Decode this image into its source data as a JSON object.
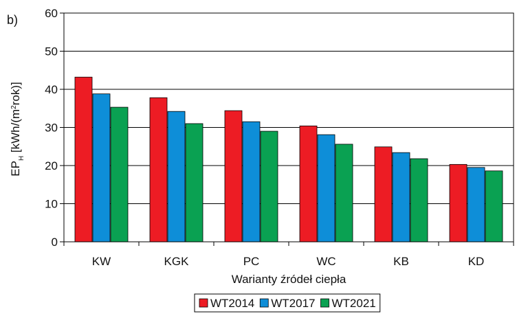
{
  "panel_label": "b)",
  "legend_title": "",
  "chart_data": {
    "type": "bar",
    "title": "",
    "xlabel": "Warianty źródeł ciepła",
    "ylabel_parts": {
      "base": "EP",
      "sub": "H",
      "unit_open": " [kWh/(m",
      "sup": "2",
      "unit_close": "rok)]"
    },
    "ylim": [
      0,
      60
    ],
    "yticks": [
      0,
      10,
      20,
      30,
      40,
      50,
      60
    ],
    "grid": true,
    "legend_position": "bottom",
    "categories": [
      "KW",
      "KGK",
      "PC",
      "WC",
      "KB",
      "KD"
    ],
    "series": [
      {
        "name": "WT2014",
        "color": "#ed1c24",
        "values": [
          43.2,
          37.8,
          34.4,
          30.4,
          24.9,
          20.3
        ]
      },
      {
        "name": "WT2017",
        "color": "#0e8ed8",
        "values": [
          38.8,
          34.2,
          31.5,
          28.1,
          23.4,
          19.5
        ]
      },
      {
        "name": "WT2021",
        "color": "#0aa152",
        "values": [
          35.3,
          31.0,
          29.0,
          25.6,
          21.8,
          18.6
        ]
      }
    ]
  }
}
